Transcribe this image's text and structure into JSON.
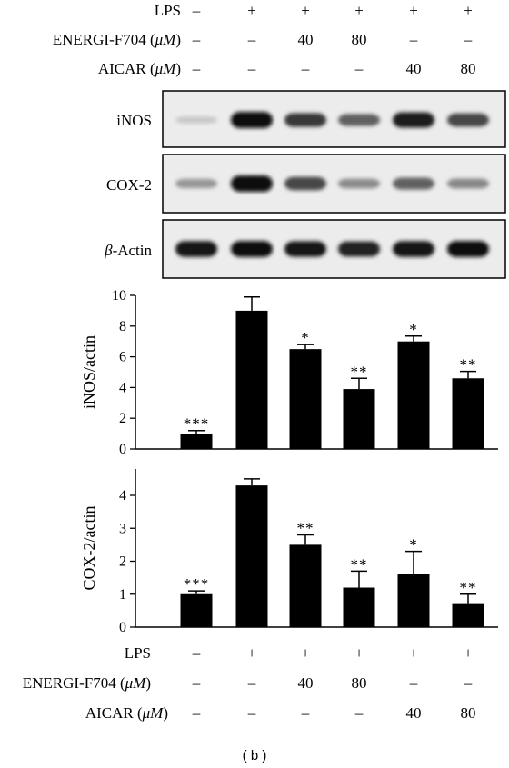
{
  "caption": "( b )",
  "conditions": {
    "columns": 6,
    "rows": [
      {
        "label": "LPS",
        "values": [
          "–",
          "+",
          "+",
          "+",
          "+",
          "+"
        ]
      },
      {
        "label_main": "ENERGI-F704 (",
        "label_unit": "μM",
        "label_tail": ")",
        "values": [
          "–",
          "–",
          "40",
          "80",
          "–",
          "–"
        ]
      },
      {
        "label_main": "AICAR (",
        "label_unit": "μM",
        "label_tail": ")",
        "values": [
          "–",
          "–",
          "–",
          "–",
          "40",
          "80"
        ]
      }
    ]
  },
  "blots": [
    {
      "label": "iNOS",
      "intensity": [
        0.12,
        1.0,
        0.78,
        0.6,
        0.92,
        0.72
      ]
    },
    {
      "label": "COX-2",
      "intensity": [
        0.35,
        1.0,
        0.72,
        0.4,
        0.6,
        0.42
      ]
    },
    {
      "label_greek": "β",
      "label_rest": "-Actin",
      "intensity": [
        0.95,
        0.97,
        0.93,
        0.9,
        0.95,
        0.97
      ]
    }
  ],
  "chart_data": [
    {
      "type": "bar",
      "ylabel": "iNOS/actin",
      "ylim": [
        0,
        10
      ],
      "yticks": [
        "0",
        "2",
        "4",
        "6",
        "8",
        "10"
      ],
      "values": [
        1.0,
        9.0,
        6.5,
        3.9,
        7.0,
        4.6
      ],
      "errors": [
        0.2,
        0.9,
        0.3,
        0.7,
        0.35,
        0.45
      ],
      "significance": [
        "***",
        "",
        "*",
        "**",
        "*",
        "**"
      ],
      "bar_color": "#000000"
    },
    {
      "type": "bar",
      "ylabel": "COX-2/actin",
      "ylim": [
        0,
        4.8
      ],
      "yticks": [
        "0",
        "1",
        "2",
        "3",
        "4"
      ],
      "values": [
        1.0,
        4.3,
        2.5,
        1.2,
        1.6,
        0.7
      ],
      "errors": [
        0.1,
        0.2,
        0.3,
        0.5,
        0.7,
        0.3
      ],
      "significance": [
        "***",
        "",
        "**",
        "**",
        "*",
        "**"
      ],
      "bar_color": "#000000"
    }
  ]
}
